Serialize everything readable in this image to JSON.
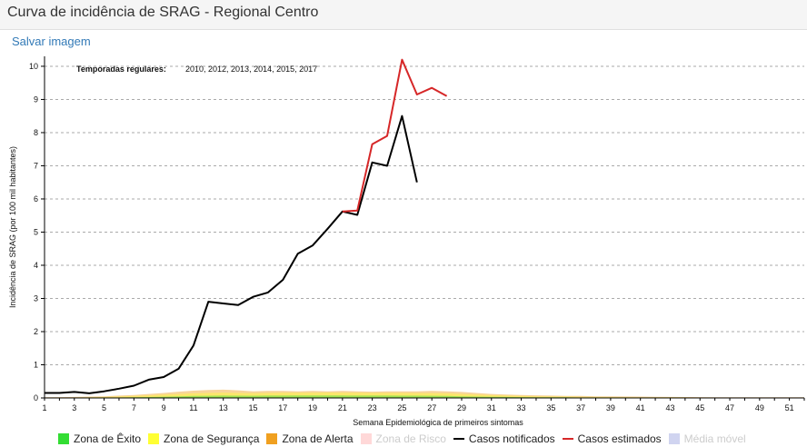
{
  "header": {
    "title": "Curva de incidência de SRAG - Regional Centro"
  },
  "save_image_label": "Salvar imagem",
  "annotation": {
    "label": "Temporadas regulares:",
    "value": "2010, 2012, 2013, 2014, 2015, 2017"
  },
  "legend": [
    {
      "label": "Zona de Êxito",
      "color": "#33dd33",
      "kind": "box",
      "faded": false
    },
    {
      "label": "Zona de Segurança",
      "color": "#ffff33",
      "kind": "box",
      "faded": false
    },
    {
      "label": "Zona de Alerta",
      "color": "#f0a020",
      "kind": "box",
      "faded": false
    },
    {
      "label": "Zona de Risco",
      "color": "#ffd8d8",
      "kind": "box",
      "faded": true
    },
    {
      "label": "Casos notificados",
      "color": "#000000",
      "kind": "line",
      "faded": false
    },
    {
      "label": "Casos estimados",
      "color": "#d62728",
      "kind": "line",
      "faded": false
    },
    {
      "label": "Média móvel",
      "color": "#d0d4f0",
      "kind": "box",
      "faded": true
    }
  ],
  "chart_data": {
    "type": "line",
    "xlabel": "Semana Epidemiológica de primeiros sintomas",
    "ylabel": "Incidência de SRAG (por 100 mil habitantes)",
    "xlim": [
      1,
      52
    ],
    "ylim": [
      0,
      10.3
    ],
    "x_ticks": [
      1,
      3,
      5,
      7,
      9,
      11,
      13,
      15,
      17,
      19,
      21,
      23,
      25,
      27,
      29,
      31,
      33,
      35,
      37,
      39,
      41,
      43,
      45,
      47,
      49,
      51
    ],
    "y_ticks": [
      0,
      1,
      2,
      3,
      4,
      5,
      6,
      7,
      8,
      9,
      10
    ],
    "grid": "horizontal dashed",
    "series": [
      {
        "name": "Casos notificados",
        "color": "#000000",
        "x": [
          1,
          2,
          3,
          4,
          5,
          6,
          7,
          8,
          9,
          10,
          11,
          12,
          13,
          14,
          15,
          16,
          17,
          18,
          19,
          20,
          21,
          22,
          23,
          24,
          25,
          26
        ],
        "y": [
          0.15,
          0.15,
          0.18,
          0.14,
          0.2,
          0.28,
          0.37,
          0.55,
          0.63,
          0.88,
          1.58,
          2.9,
          2.85,
          2.8,
          3.05,
          3.18,
          3.56,
          4.35,
          4.6,
          5.1,
          5.62,
          5.52,
          7.1,
          7.0,
          8.5,
          6.5
        ]
      },
      {
        "name": "Casos estimados",
        "color": "#d62728",
        "x": [
          21,
          22,
          23,
          24,
          25,
          26,
          27,
          28
        ],
        "y": [
          5.62,
          5.65,
          7.65,
          7.9,
          10.2,
          9.15,
          9.35,
          9.1
        ]
      }
    ],
    "zones": {
      "Zona de Êxito": {
        "x": [
          1,
          2,
          3,
          4,
          5,
          6,
          7,
          8,
          9,
          10,
          11,
          12,
          13,
          14,
          15,
          16,
          17,
          18,
          19,
          20,
          21,
          22,
          23,
          24,
          25,
          26,
          27,
          28,
          29,
          30,
          31,
          32,
          33,
          34,
          35,
          36,
          37,
          38,
          39,
          40,
          41,
          42,
          43,
          44,
          45,
          46,
          47,
          48,
          49,
          50,
          51,
          52
        ],
        "y": [
          0.005,
          0.005,
          0.006,
          0.008,
          0.01,
          0.015,
          0.02,
          0.028,
          0.038,
          0.05,
          0.06,
          0.065,
          0.07,
          0.068,
          0.065,
          0.07,
          0.072,
          0.075,
          0.075,
          0.078,
          0.075,
          0.07,
          0.07,
          0.07,
          0.068,
          0.068,
          0.065,
          0.06,
          0.05,
          0.04,
          0.035,
          0.03,
          0.025,
          0.02,
          0.02,
          0.018,
          0.015,
          0.013,
          0.012,
          0.01,
          0.01,
          0.008,
          0.008,
          0.007,
          0.006,
          0.005,
          0.005,
          0.005,
          0.004,
          0.004,
          0.004,
          0.004
        ]
      },
      "Zona de Segurança": {
        "x": [
          1,
          2,
          3,
          4,
          5,
          6,
          7,
          8,
          9,
          10,
          11,
          12,
          13,
          14,
          15,
          16,
          17,
          18,
          19,
          20,
          21,
          22,
          23,
          24,
          25,
          26,
          27,
          28,
          29,
          30,
          31,
          32,
          33,
          34,
          35,
          36,
          37,
          38,
          39,
          40,
          41,
          42,
          43,
          44,
          45,
          46,
          47,
          48,
          49,
          50,
          51,
          52
        ],
        "y": [
          0.01,
          0.012,
          0.015,
          0.02,
          0.03,
          0.045,
          0.06,
          0.08,
          0.1,
          0.12,
          0.14,
          0.15,
          0.155,
          0.15,
          0.145,
          0.15,
          0.155,
          0.16,
          0.16,
          0.165,
          0.16,
          0.155,
          0.15,
          0.15,
          0.15,
          0.148,
          0.145,
          0.14,
          0.12,
          0.1,
          0.085,
          0.07,
          0.06,
          0.05,
          0.045,
          0.04,
          0.035,
          0.03,
          0.028,
          0.025,
          0.022,
          0.02,
          0.018,
          0.016,
          0.014,
          0.012,
          0.011,
          0.01,
          0.01,
          0.01,
          0.01,
          0.01
        ]
      },
      "Zona de Alerta": {
        "x": [
          1,
          2,
          3,
          4,
          5,
          6,
          7,
          8,
          9,
          10,
          11,
          12,
          13,
          14,
          15,
          16,
          17,
          18,
          19,
          20,
          21,
          22,
          23,
          24,
          25,
          26,
          27,
          28,
          29,
          30,
          31,
          32,
          33,
          34,
          35,
          36,
          37,
          38,
          39,
          40,
          41,
          42,
          43,
          44,
          45,
          46,
          47,
          48,
          49,
          50,
          51,
          52
        ],
        "y": [
          0.02,
          0.025,
          0.03,
          0.04,
          0.05,
          0.07,
          0.09,
          0.12,
          0.15,
          0.19,
          0.22,
          0.24,
          0.25,
          0.23,
          0.2,
          0.21,
          0.21,
          0.2,
          0.21,
          0.2,
          0.21,
          0.2,
          0.19,
          0.2,
          0.2,
          0.2,
          0.21,
          0.2,
          0.18,
          0.15,
          0.12,
          0.1,
          0.09,
          0.08,
          0.07,
          0.06,
          0.06,
          0.05,
          0.05,
          0.045,
          0.04,
          0.035,
          0.03,
          0.028,
          0.025,
          0.022,
          0.02,
          0.02,
          0.02,
          0.02,
          0.02,
          0.02
        ]
      }
    }
  }
}
